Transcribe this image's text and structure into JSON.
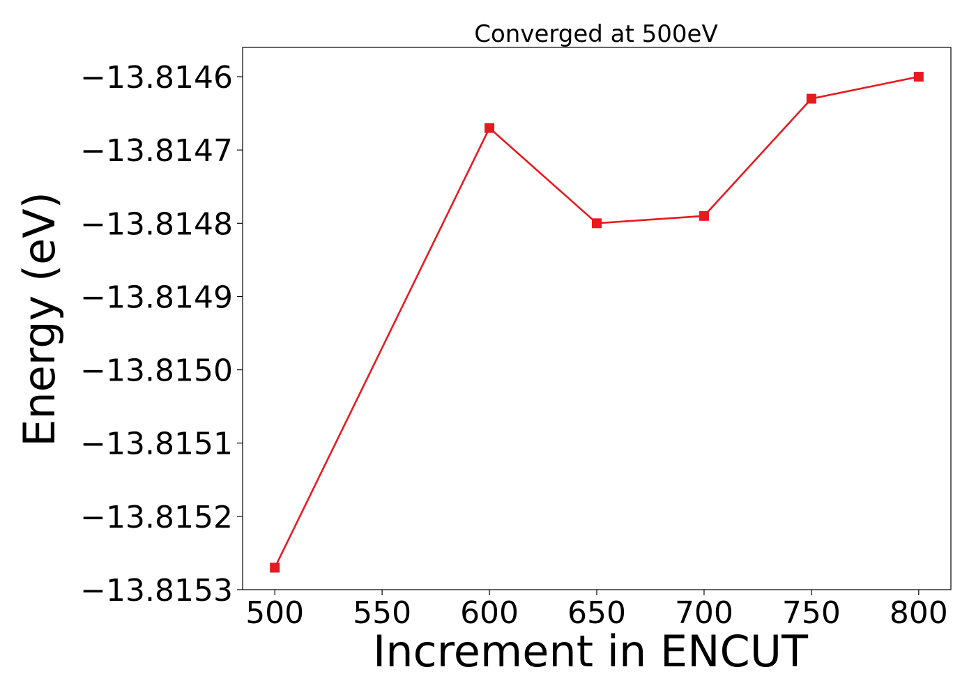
{
  "chart_data": {
    "type": "line",
    "title": "Converged at 500eV",
    "xlabel": "Increment in ENCUT",
    "ylabel": "Energy (eV)",
    "x": [
      500,
      600,
      650,
      700,
      750,
      800
    ],
    "series": [
      {
        "values": [
          -13.81527,
          -13.81467,
          -13.8148,
          -13.81479,
          -13.81463,
          -13.8146
        ],
        "color": "#e8191f",
        "marker": "square"
      }
    ],
    "xlim": [
      485,
      815
    ],
    "ylim": [
      -13.8153,
      -13.81456
    ],
    "xticks": [
      500,
      550,
      600,
      650,
      700,
      750,
      800
    ],
    "xtick_labels": [
      "500",
      "550",
      "600",
      "650",
      "700",
      "750",
      "800"
    ],
    "yticks": [
      -13.8153,
      -13.8152,
      -13.8151,
      -13.815,
      -13.8149,
      -13.8148,
      -13.8147,
      -13.8146
    ],
    "ytick_labels": [
      "−13.8153",
      "−13.8152",
      "−13.8151",
      "−13.8150",
      "−13.8149",
      "−13.8148",
      "−13.8147",
      "−13.8146"
    ],
    "grid": false,
    "legend": "none"
  }
}
